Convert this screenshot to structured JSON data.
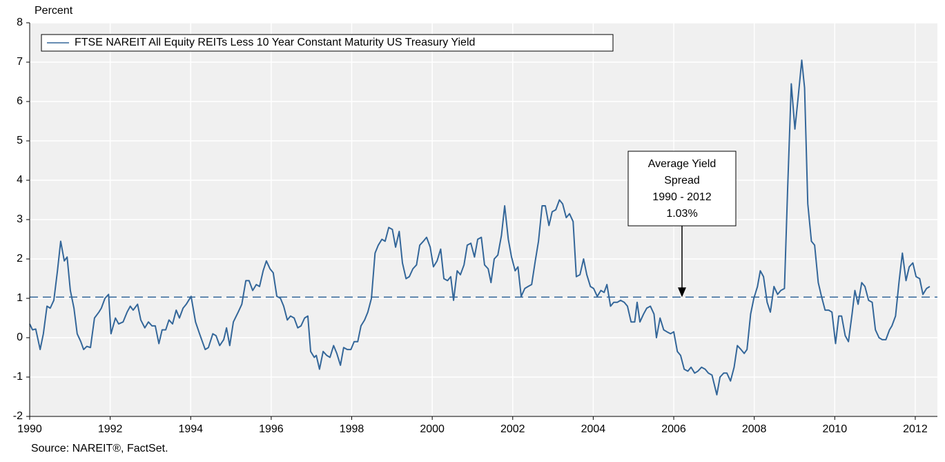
{
  "chart_data": {
    "type": "line",
    "y_label": "Percent",
    "source": "Source: NAREIT®, FactSet.",
    "xlim": [
      1990,
      2012.55
    ],
    "xticks": [
      1990,
      1992,
      1994,
      1996,
      1998,
      2000,
      2002,
      2004,
      2006,
      2008,
      2010,
      2012
    ],
    "ylim": [
      -2,
      8
    ],
    "yticks": [
      -2,
      -1,
      0,
      1,
      2,
      3,
      4,
      5,
      6,
      7,
      8
    ],
    "grid": true,
    "legend": "upper left",
    "annotation": {
      "lines": [
        "Average Yield",
        "Spread",
        "1990 - 2012"
      ],
      "value": 1.03,
      "label": "1.03%"
    },
    "x": [
      1990.0,
      1990.07,
      1990.15,
      1990.26,
      1990.34,
      1990.43,
      1990.51,
      1990.6,
      1990.69,
      1990.77,
      1990.86,
      1990.93,
      1991.01,
      1991.1,
      1991.18,
      1991.27,
      1991.34,
      1991.42,
      1991.51,
      1991.61,
      1991.72,
      1991.78,
      1991.87,
      1991.96,
      1992.02,
      1992.13,
      1992.21,
      1992.32,
      1992.42,
      1992.5,
      1992.57,
      1992.68,
      1992.76,
      1992.86,
      1992.95,
      1993.04,
      1993.12,
      1993.21,
      1993.29,
      1993.38,
      1993.46,
      1993.55,
      1993.64,
      1993.72,
      1993.81,
      1993.89,
      1994.01,
      1994.12,
      1994.22,
      1994.36,
      1994.44,
      1994.55,
      1994.63,
      1994.72,
      1994.82,
      1994.89,
      1994.97,
      1995.06,
      1995.18,
      1995.27,
      1995.37,
      1995.45,
      1995.54,
      1995.63,
      1995.71,
      1995.8,
      1995.88,
      1995.97,
      1996.05,
      1996.14,
      1996.23,
      1996.31,
      1996.4,
      1996.48,
      1996.57,
      1996.66,
      1996.74,
      1996.83,
      1996.91,
      1996.98,
      1997.07,
      1997.12,
      1997.2,
      1997.29,
      1997.38,
      1997.46,
      1997.55,
      1997.63,
      1997.72,
      1997.8,
      1997.89,
      1997.98,
      1998.06,
      1998.15,
      1998.23,
      1998.32,
      1998.4,
      1998.49,
      1998.58,
      1998.66,
      1998.75,
      1998.83,
      1998.92,
      1999.01,
      1999.09,
      1999.18,
      1999.26,
      1999.35,
      1999.43,
      1999.52,
      1999.61,
      1999.69,
      1999.78,
      1999.86,
      1999.95,
      2000.03,
      2000.12,
      2000.21,
      2000.29,
      2000.38,
      2000.46,
      2000.53,
      2000.62,
      2000.7,
      2000.79,
      2000.87,
      2000.96,
      2001.05,
      2001.13,
      2001.22,
      2001.3,
      2001.39,
      2001.46,
      2001.54,
      2001.63,
      2001.72,
      2001.8,
      2001.89,
      2001.97,
      2002.06,
      2002.13,
      2002.21,
      2002.3,
      2002.38,
      2002.47,
      2002.56,
      2002.64,
      2002.73,
      2002.81,
      2002.9,
      2002.98,
      2003.07,
      2003.16,
      2003.24,
      2003.33,
      2003.41,
      2003.5,
      2003.58,
      2003.67,
      2003.76,
      2003.84,
      2003.93,
      2004.01,
      2004.1,
      2004.19,
      2004.27,
      2004.34,
      2004.43,
      2004.51,
      2004.6,
      2004.68,
      2004.77,
      2004.85,
      2004.94,
      2005.03,
      2005.09,
      2005.16,
      2005.25,
      2005.33,
      2005.42,
      2005.51,
      2005.57,
      2005.66,
      2005.75,
      2005.83,
      2005.92,
      2006.0,
      2006.09,
      2006.17,
      2006.26,
      2006.35,
      2006.43,
      2006.52,
      2006.6,
      2006.69,
      2006.78,
      2006.86,
      2006.95,
      2007.07,
      2007.15,
      2007.24,
      2007.32,
      2007.41,
      2007.5,
      2007.58,
      2007.67,
      2007.75,
      2007.82,
      2007.91,
      2007.99,
      2008.08,
      2008.15,
      2008.23,
      2008.32,
      2008.4,
      2008.49,
      2008.58,
      2008.66,
      2008.75,
      2008.83,
      2008.92,
      2009.01,
      2009.09,
      2009.18,
      2009.25,
      2009.33,
      2009.42,
      2009.5,
      2009.59,
      2009.67,
      2009.76,
      2009.85,
      2009.93,
      2010.02,
      2010.1,
      2010.17,
      2010.26,
      2010.34,
      2010.43,
      2010.5,
      2010.58,
      2010.67,
      2010.75,
      2010.84,
      2010.93,
      2011.01,
      2011.1,
      2011.18,
      2011.27,
      2011.36,
      2011.42,
      2011.51,
      2011.6,
      2011.68,
      2011.77,
      2011.85,
      2011.94,
      2012.02,
      2012.11,
      2012.19,
      2012.28,
      2012.36
    ],
    "series": [
      {
        "name": "FTSE NAREIT All Equity REITs Less 10 Year Constant Maturity US Treasury Yield",
        "color": "#336699",
        "values": [
          0.35,
          0.2,
          0.22,
          -0.3,
          0.1,
          0.8,
          0.75,
          0.95,
          1.7,
          2.45,
          1.95,
          2.05,
          1.2,
          0.75,
          0.1,
          -0.1,
          -0.3,
          -0.22,
          -0.25,
          0.5,
          0.65,
          0.75,
          1.0,
          1.1,
          0.1,
          0.5,
          0.35,
          0.4,
          0.65,
          0.8,
          0.7,
          0.85,
          0.45,
          0.25,
          0.4,
          0.3,
          0.3,
          -0.15,
          0.2,
          0.2,
          0.45,
          0.35,
          0.7,
          0.5,
          0.75,
          0.85,
          1.05,
          0.4,
          0.1,
          -0.3,
          -0.25,
          0.1,
          0.05,
          -0.2,
          -0.05,
          0.25,
          -0.2,
          0.4,
          0.65,
          0.85,
          1.45,
          1.45,
          1.2,
          1.35,
          1.3,
          1.7,
          1.95,
          1.75,
          1.65,
          1.05,
          1.0,
          0.8,
          0.45,
          0.55,
          0.5,
          0.25,
          0.3,
          0.5,
          0.55,
          -0.35,
          -0.5,
          -0.45,
          -0.8,
          -0.35,
          -0.45,
          -0.5,
          -0.2,
          -0.4,
          -0.7,
          -0.25,
          -0.3,
          -0.3,
          -0.1,
          -0.1,
          0.3,
          0.45,
          0.65,
          1.0,
          2.15,
          2.35,
          2.5,
          2.45,
          2.8,
          2.75,
          2.3,
          2.7,
          1.9,
          1.5,
          1.55,
          1.75,
          1.85,
          2.35,
          2.45,
          2.55,
          2.3,
          1.8,
          1.95,
          2.25,
          1.5,
          1.45,
          1.55,
          0.95,
          1.7,
          1.6,
          1.85,
          2.35,
          2.4,
          2.05,
          2.5,
          2.55,
          1.85,
          1.75,
          1.4,
          2.0,
          2.1,
          2.6,
          3.35,
          2.5,
          2.05,
          1.7,
          1.8,
          1.05,
          1.25,
          1.3,
          1.35,
          1.95,
          2.45,
          3.35,
          3.35,
          2.85,
          3.2,
          3.25,
          3.5,
          3.4,
          3.05,
          3.15,
          2.95,
          1.55,
          1.6,
          2.0,
          1.6,
          1.3,
          1.25,
          1.05,
          1.2,
          1.15,
          1.35,
          0.8,
          0.9,
          0.9,
          0.95,
          0.9,
          0.8,
          0.4,
          0.4,
          0.9,
          0.4,
          0.6,
          0.75,
          0.8,
          0.6,
          0.0,
          0.5,
          0.2,
          0.15,
          0.1,
          0.15,
          -0.35,
          -0.45,
          -0.8,
          -0.85,
          -0.75,
          -0.9,
          -0.85,
          -0.75,
          -0.8,
          -0.9,
          -0.95,
          -1.45,
          -1.0,
          -0.9,
          -0.9,
          -1.1,
          -0.75,
          -0.2,
          -0.3,
          -0.4,
          -0.3,
          0.6,
          1.0,
          1.3,
          1.7,
          1.55,
          0.9,
          0.65,
          1.3,
          1.1,
          1.2,
          1.25,
          3.8,
          6.45,
          5.3,
          6.1,
          7.05,
          6.35,
          3.4,
          2.45,
          2.35,
          1.4,
          1.05,
          0.7,
          0.7,
          0.65,
          -0.15,
          0.55,
          0.55,
          0.05,
          -0.1,
          0.6,
          1.2,
          0.85,
          1.4,
          1.3,
          0.95,
          0.9,
          0.2,
          0.0,
          -0.05,
          -0.05,
          0.2,
          0.3,
          0.55,
          1.45,
          2.15,
          1.45,
          1.8,
          1.9,
          1.55,
          1.5,
          1.1,
          1.25,
          1.3
        ]
      }
    ]
  }
}
